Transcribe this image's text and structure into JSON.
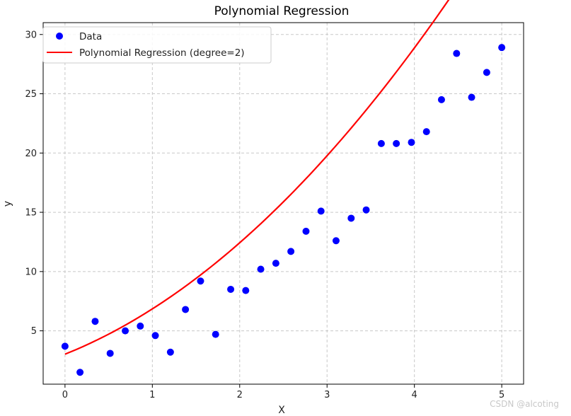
{
  "chart_data": {
    "type": "scatter",
    "title": "Polynomial Regression",
    "xlabel": "X",
    "ylabel": "y",
    "xlim": [
      -0.25,
      5.25
    ],
    "ylim": [
      0.5,
      31
    ],
    "xticks": [
      0,
      1,
      2,
      3,
      4,
      5
    ],
    "yticks": [
      5,
      10,
      15,
      20,
      25,
      30
    ],
    "grid": true,
    "legend_position": "top-left",
    "series": [
      {
        "name": "Data",
        "kind": "scatter",
        "color": "#0000ff",
        "x": [
          0.0,
          0.172,
          0.345,
          0.517,
          0.69,
          0.862,
          1.034,
          1.207,
          1.379,
          1.552,
          1.724,
          1.897,
          2.069,
          2.241,
          2.414,
          2.586,
          2.759,
          2.931,
          3.103,
          3.276,
          3.448,
          3.621,
          3.793,
          3.966,
          4.138,
          4.31,
          4.483,
          4.655,
          4.828,
          5.0
        ],
        "y": [
          3.7,
          1.5,
          5.8,
          3.1,
          5.0,
          5.4,
          4.6,
          3.2,
          6.8,
          9.2,
          4.7,
          8.5,
          8.4,
          10.2,
          10.7,
          11.7,
          13.4,
          15.1,
          12.6,
          14.5,
          15.2,
          20.8,
          20.8,
          20.9,
          21.8,
          24.5,
          28.4,
          24.7,
          26.8,
          28.9
        ]
      },
      {
        "name": "Polynomial Regression (degree=2)",
        "kind": "line",
        "color": "#ff0000",
        "coefficients": {
          "a": 0.88,
          "b": 2.94,
          "c": 3.03
        }
      }
    ]
  },
  "watermark": "CSDN @alcoting"
}
